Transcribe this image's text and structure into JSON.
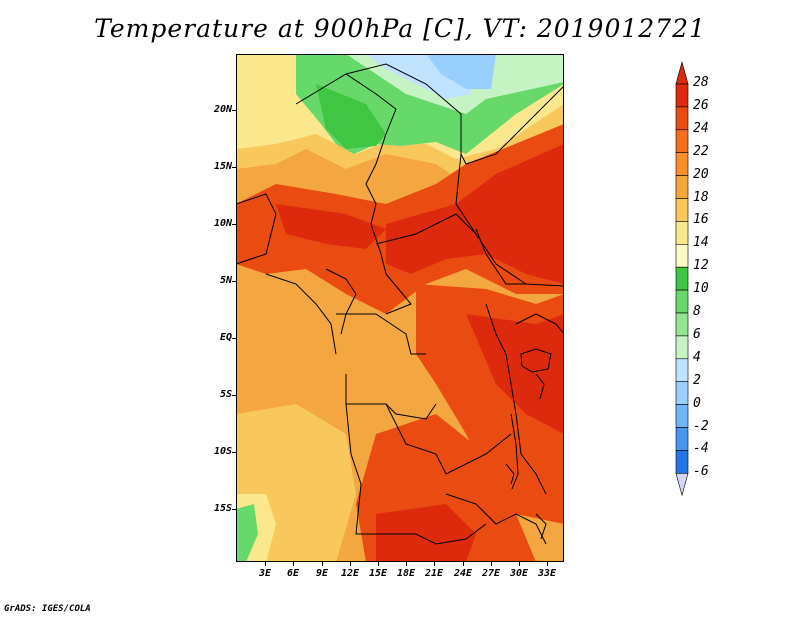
{
  "title": "Temperature at 900hPa [C], VT: 2019012721",
  "footer": "GrADS: IGES/COLA",
  "map": {
    "lat_labels": [
      "20N",
      "15N",
      "10N",
      "5N",
      "EQ",
      "5S",
      "10S",
      "15S"
    ],
    "lon_labels": [
      "3E",
      "6E",
      "9E",
      "12E",
      "15E",
      "18E",
      "21E",
      "24E",
      "27E",
      "30E",
      "33E"
    ]
  },
  "colorbar": {
    "levels": [
      "28",
      "26",
      "24",
      "22",
      "20",
      "18",
      "16",
      "14",
      "12",
      "10",
      "8",
      "6",
      "4",
      "2",
      "0",
      "-2",
      "-4",
      "-6"
    ],
    "colors": [
      "#dd2a0c",
      "#ea4b10",
      "#f56e1c",
      "#f58f26",
      "#f5a83a",
      "#f8c85c",
      "#fbe88c",
      "#fdf9c4",
      "#3fc642",
      "#67d86a",
      "#94e590",
      "#c6f3c4",
      "#bfe3ff",
      "#99cffd",
      "#6fb5f8",
      "#4796f0",
      "#2374e5",
      "#1157cb",
      "#0b3aa5",
      "#0d1a7a"
    ],
    "arrow_top_color": "#dd2a0c",
    "arrow_bottom_color": "#d6d6f6"
  }
}
